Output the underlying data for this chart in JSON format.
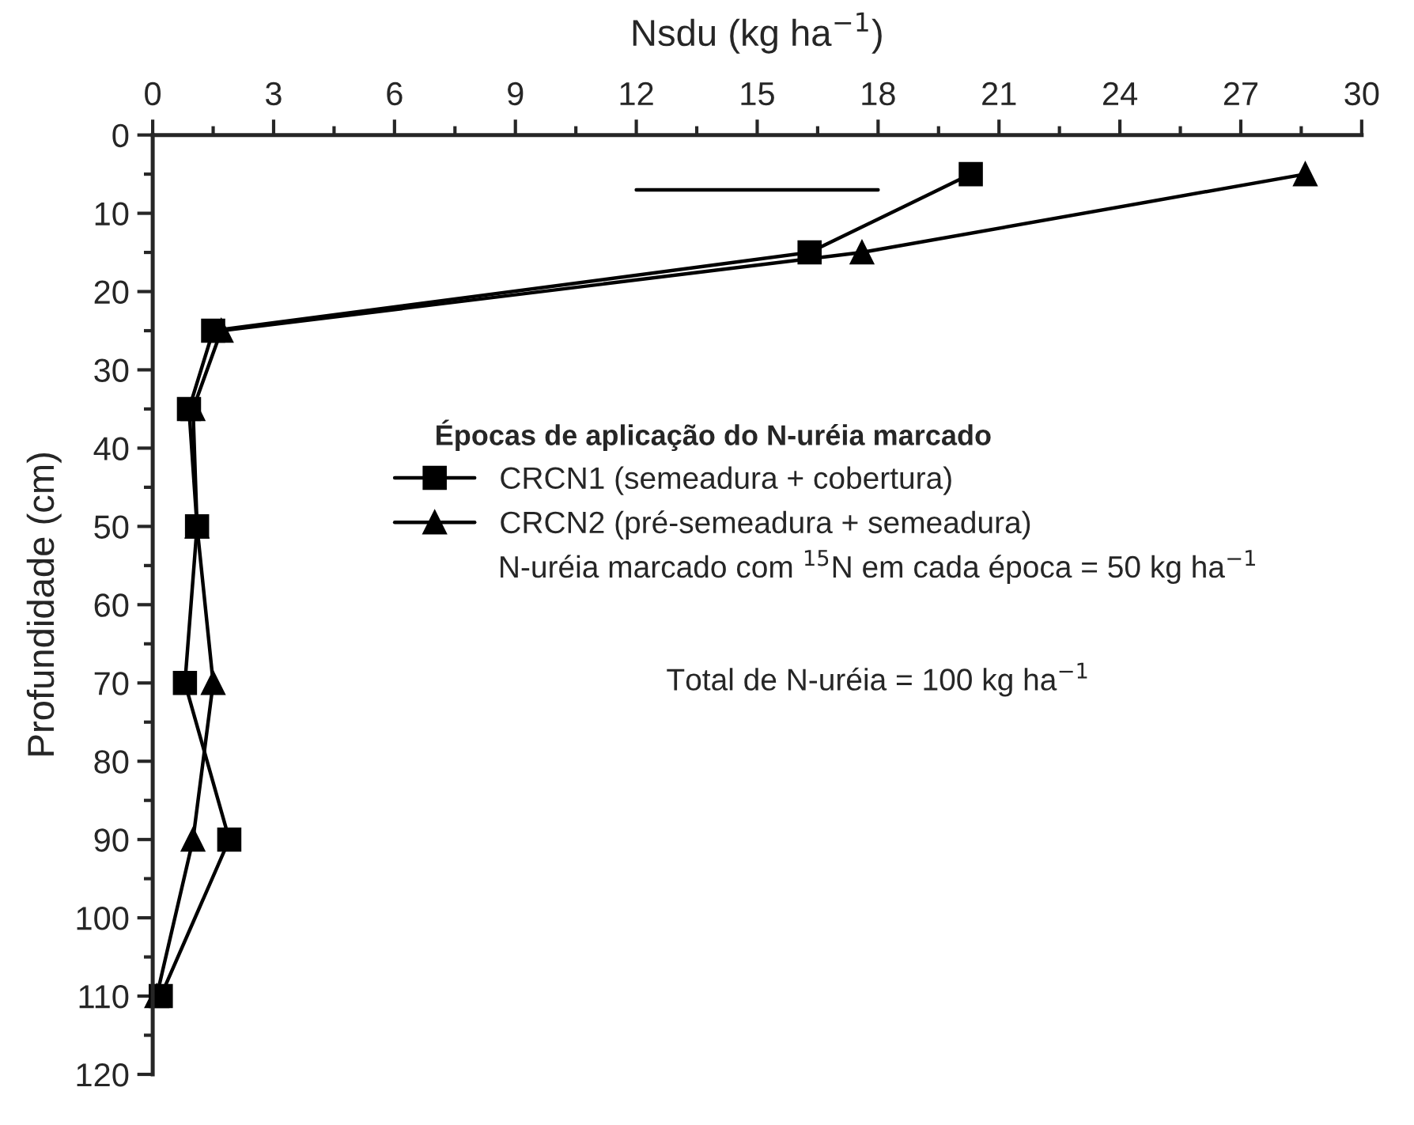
{
  "chart_data": {
    "type": "line",
    "xlabel": "Nsdu (kg ha$^{−1}$)",
    "ylabel": "Profundidade (cm)",
    "legend_title": "Épocas de aplicação do N-uréia marcado",
    "legend": "right",
    "xlim": [
      0,
      30
    ],
    "xticks": [
      0,
      3,
      6,
      9,
      12,
      15,
      18,
      21,
      24,
      27,
      30
    ],
    "ylim": [
      120,
      0
    ],
    "yticks": [
      0,
      10,
      20,
      30,
      40,
      50,
      60,
      70,
      80,
      90,
      100,
      110,
      120
    ],
    "grid": false,
    "series": [
      {
        "name": "CRCN1 (semeadura + cobertura)",
        "color": "#000000",
        "marker": "square",
        "x": [
          20.3,
          16.3,
          1.5,
          0.9,
          1.1,
          0.8,
          1.9,
          0.2
        ],
        "values": [
          5,
          15,
          25,
          35,
          50,
          70,
          90,
          110
        ]
      },
      {
        "name": "CRCN2 (pré-semeadura + semeadura)",
        "color": "#000000",
        "marker": "triangle",
        "x": [
          28.6,
          17.6,
          1.7,
          1.0,
          1.1,
          1.5,
          1.0,
          0.1
        ],
        "values": [
          5,
          15,
          25,
          35,
          50,
          70,
          90,
          110
        ]
      },
      {
        "color": "#000000",
        "marker": "none",
        "x": [
          12,
          18
        ],
        "values": [
          7,
          7
        ]
      }
    ],
    "annotations": [
      "N-uréia marcado com $^{15}$N em cada época = 50 kg ha$^{−1}$",
      "Total de N-uréia = 100 kg ha$^{−1}$"
    ]
  }
}
